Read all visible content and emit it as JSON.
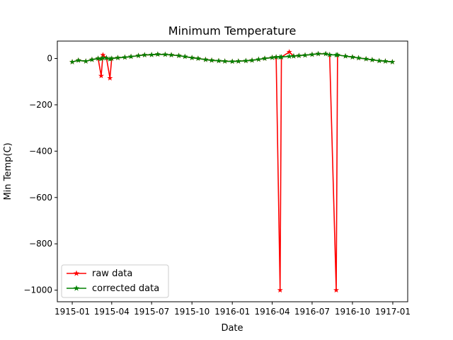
{
  "chart_data": {
    "type": "line",
    "title": "Minimum Temperature",
    "xlabel": "Date",
    "ylabel": "Min Temp(C)",
    "xlim": [
      "1914-11-28",
      "1917-02-04"
    ],
    "ylim": [
      -1050,
      75
    ],
    "x_ticks": [
      "1915-01",
      "1915-04",
      "1915-07",
      "1915-10",
      "1916-01",
      "1916-04",
      "1916-07",
      "1916-10",
      "1917-01"
    ],
    "y_ticks": [
      0,
      -200,
      -400,
      -600,
      -800,
      -1000
    ],
    "y_tick_labels": [
      "0",
      "−200",
      "−400",
      "−600",
      "−800",
      "−1000"
    ],
    "grid": false,
    "legend": {
      "placement": "bottom-left"
    },
    "series": [
      {
        "name": "raw data",
        "color": "#ff0000",
        "marker": "star",
        "points": [
          [
            "1915-01-01",
            -15
          ],
          [
            "1915-01-15",
            -8
          ],
          [
            "1915-02-01",
            -12
          ],
          [
            "1915-02-15",
            -5
          ],
          [
            "1915-03-01",
            0
          ],
          [
            "1915-03-08",
            -75
          ],
          [
            "1915-03-12",
            15
          ],
          [
            "1915-03-20",
            2
          ],
          [
            "1915-03-28",
            -85
          ],
          [
            "1915-04-01",
            0
          ],
          [
            "1915-04-15",
            3
          ],
          [
            "1915-05-01",
            5
          ],
          [
            "1915-05-15",
            8
          ],
          [
            "1915-06-01",
            12
          ],
          [
            "1915-06-15",
            15
          ],
          [
            "1915-07-01",
            16
          ],
          [
            "1915-07-15",
            18
          ],
          [
            "1915-08-01",
            17
          ],
          [
            "1915-08-15",
            15
          ],
          [
            "1915-09-01",
            12
          ],
          [
            "1915-09-15",
            8
          ],
          [
            "1915-10-01",
            3
          ],
          [
            "1915-10-15",
            0
          ],
          [
            "1915-11-01",
            -5
          ],
          [
            "1915-11-15",
            -8
          ],
          [
            "1915-12-01",
            -10
          ],
          [
            "1915-12-15",
            -12
          ],
          [
            "1916-01-01",
            -13
          ],
          [
            "1916-01-15",
            -12
          ],
          [
            "1916-02-01",
            -10
          ],
          [
            "1916-02-15",
            -8
          ],
          [
            "1916-03-01",
            -4
          ],
          [
            "1916-03-15",
            0
          ],
          [
            "1916-04-01",
            4
          ],
          [
            "1916-04-10",
            6
          ],
          [
            "1916-04-19",
            -1000
          ],
          [
            "1916-04-22",
            6
          ],
          [
            "1916-05-10",
            28
          ],
          [
            "1916-05-20",
            10
          ],
          [
            "1916-06-01",
            12
          ],
          [
            "1916-06-15",
            14
          ],
          [
            "1916-07-01",
            17
          ],
          [
            "1916-07-15",
            20
          ],
          [
            "1916-08-01",
            20
          ],
          [
            "1916-08-10",
            16
          ],
          [
            "1916-08-25",
            -1000
          ],
          [
            "1916-08-28",
            15
          ],
          [
            "1916-09-15",
            10
          ],
          [
            "1916-10-01",
            6
          ],
          [
            "1916-10-15",
            2
          ],
          [
            "1916-11-01",
            -2
          ],
          [
            "1916-11-15",
            -6
          ],
          [
            "1916-12-01",
            -10
          ],
          [
            "1916-12-15",
            -12
          ],
          [
            "1916-12-31",
            -15
          ]
        ]
      },
      {
        "name": "corrected data",
        "color": "#008000",
        "marker": "star",
        "points": [
          [
            "1915-01-01",
            -15
          ],
          [
            "1915-01-15",
            -8
          ],
          [
            "1915-02-01",
            -12
          ],
          [
            "1915-02-15",
            -5
          ],
          [
            "1915-03-01",
            0
          ],
          [
            "1915-03-08",
            -2
          ],
          [
            "1915-03-12",
            2
          ],
          [
            "1915-03-20",
            2
          ],
          [
            "1915-03-28",
            -3
          ],
          [
            "1915-04-01",
            0
          ],
          [
            "1915-04-15",
            3
          ],
          [
            "1915-05-01",
            5
          ],
          [
            "1915-05-15",
            8
          ],
          [
            "1915-06-01",
            12
          ],
          [
            "1915-06-15",
            15
          ],
          [
            "1915-07-01",
            16
          ],
          [
            "1915-07-15",
            18
          ],
          [
            "1915-08-01",
            17
          ],
          [
            "1915-08-15",
            15
          ],
          [
            "1915-09-01",
            12
          ],
          [
            "1915-09-15",
            8
          ],
          [
            "1915-10-01",
            3
          ],
          [
            "1915-10-15",
            0
          ],
          [
            "1915-11-01",
            -5
          ],
          [
            "1915-11-15",
            -8
          ],
          [
            "1915-12-01",
            -10
          ],
          [
            "1915-12-15",
            -12
          ],
          [
            "1916-01-01",
            -13
          ],
          [
            "1916-01-15",
            -12
          ],
          [
            "1916-02-01",
            -10
          ],
          [
            "1916-02-15",
            -8
          ],
          [
            "1916-03-01",
            -4
          ],
          [
            "1916-03-15",
            0
          ],
          [
            "1916-04-01",
            4
          ],
          [
            "1916-04-10",
            6
          ],
          [
            "1916-04-19",
            6
          ],
          [
            "1916-04-22",
            6
          ],
          [
            "1916-05-10",
            9
          ],
          [
            "1916-05-20",
            10
          ],
          [
            "1916-06-01",
            12
          ],
          [
            "1916-06-15",
            14
          ],
          [
            "1916-07-01",
            17
          ],
          [
            "1916-07-15",
            20
          ],
          [
            "1916-08-01",
            20
          ],
          [
            "1916-08-10",
            16
          ],
          [
            "1916-08-25",
            15
          ],
          [
            "1916-08-28",
            15
          ],
          [
            "1916-09-15",
            10
          ],
          [
            "1916-10-01",
            6
          ],
          [
            "1916-10-15",
            2
          ],
          [
            "1916-11-01",
            -2
          ],
          [
            "1916-11-15",
            -6
          ],
          [
            "1916-12-01",
            -10
          ],
          [
            "1916-12-15",
            -12
          ],
          [
            "1916-12-31",
            -15
          ]
        ]
      }
    ]
  }
}
